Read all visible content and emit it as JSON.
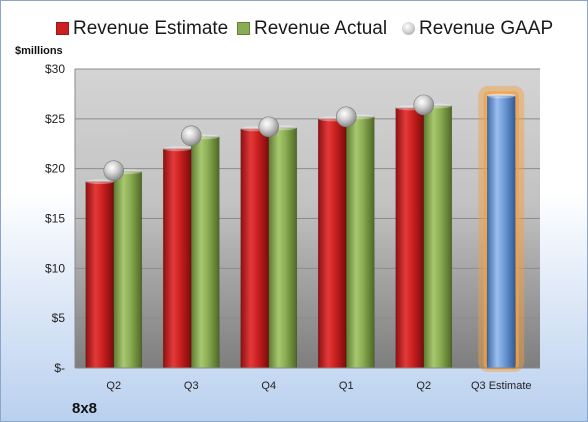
{
  "chart_data": {
    "type": "bar",
    "company": "8x8",
    "ylabel": "$millions",
    "ylim": [
      0,
      30
    ],
    "yticks": [
      {
        "value": 0,
        "label": "$-"
      },
      {
        "value": 5,
        "label": "$5"
      },
      {
        "value": 10,
        "label": "$10"
      },
      {
        "value": 15,
        "label": "$15"
      },
      {
        "value": 20,
        "label": "$20"
      },
      {
        "value": 25,
        "label": "$25"
      },
      {
        "value": 30,
        "label": "$30"
      }
    ],
    "grid": true,
    "legend_position": "top",
    "categories": [
      "Q2",
      "Q3",
      "Q4",
      "Q1",
      "Q2",
      "Q3 Estimate"
    ],
    "series": [
      {
        "name": "Revenue Estimate",
        "kind": "bar",
        "color": "#cc2020",
        "values": [
          18.7,
          22.0,
          24.0,
          25.0,
          26.1,
          null
        ]
      },
      {
        "name": "Revenue Actual",
        "kind": "bar",
        "color": "#8aac52",
        "values": [
          19.7,
          23.2,
          24.1,
          25.2,
          26.3,
          null
        ]
      },
      {
        "name": "Revenue GAAP",
        "kind": "marker",
        "color": "#c8c8c8",
        "values": [
          19.8,
          23.3,
          24.2,
          25.2,
          26.4,
          null
        ]
      },
      {
        "name": "Q3 Estimate",
        "kind": "highlight-bar",
        "color": "#6f9bd8",
        "glow": "#f5a040",
        "values": [
          null,
          null,
          null,
          null,
          null,
          27.3
        ]
      }
    ]
  }
}
